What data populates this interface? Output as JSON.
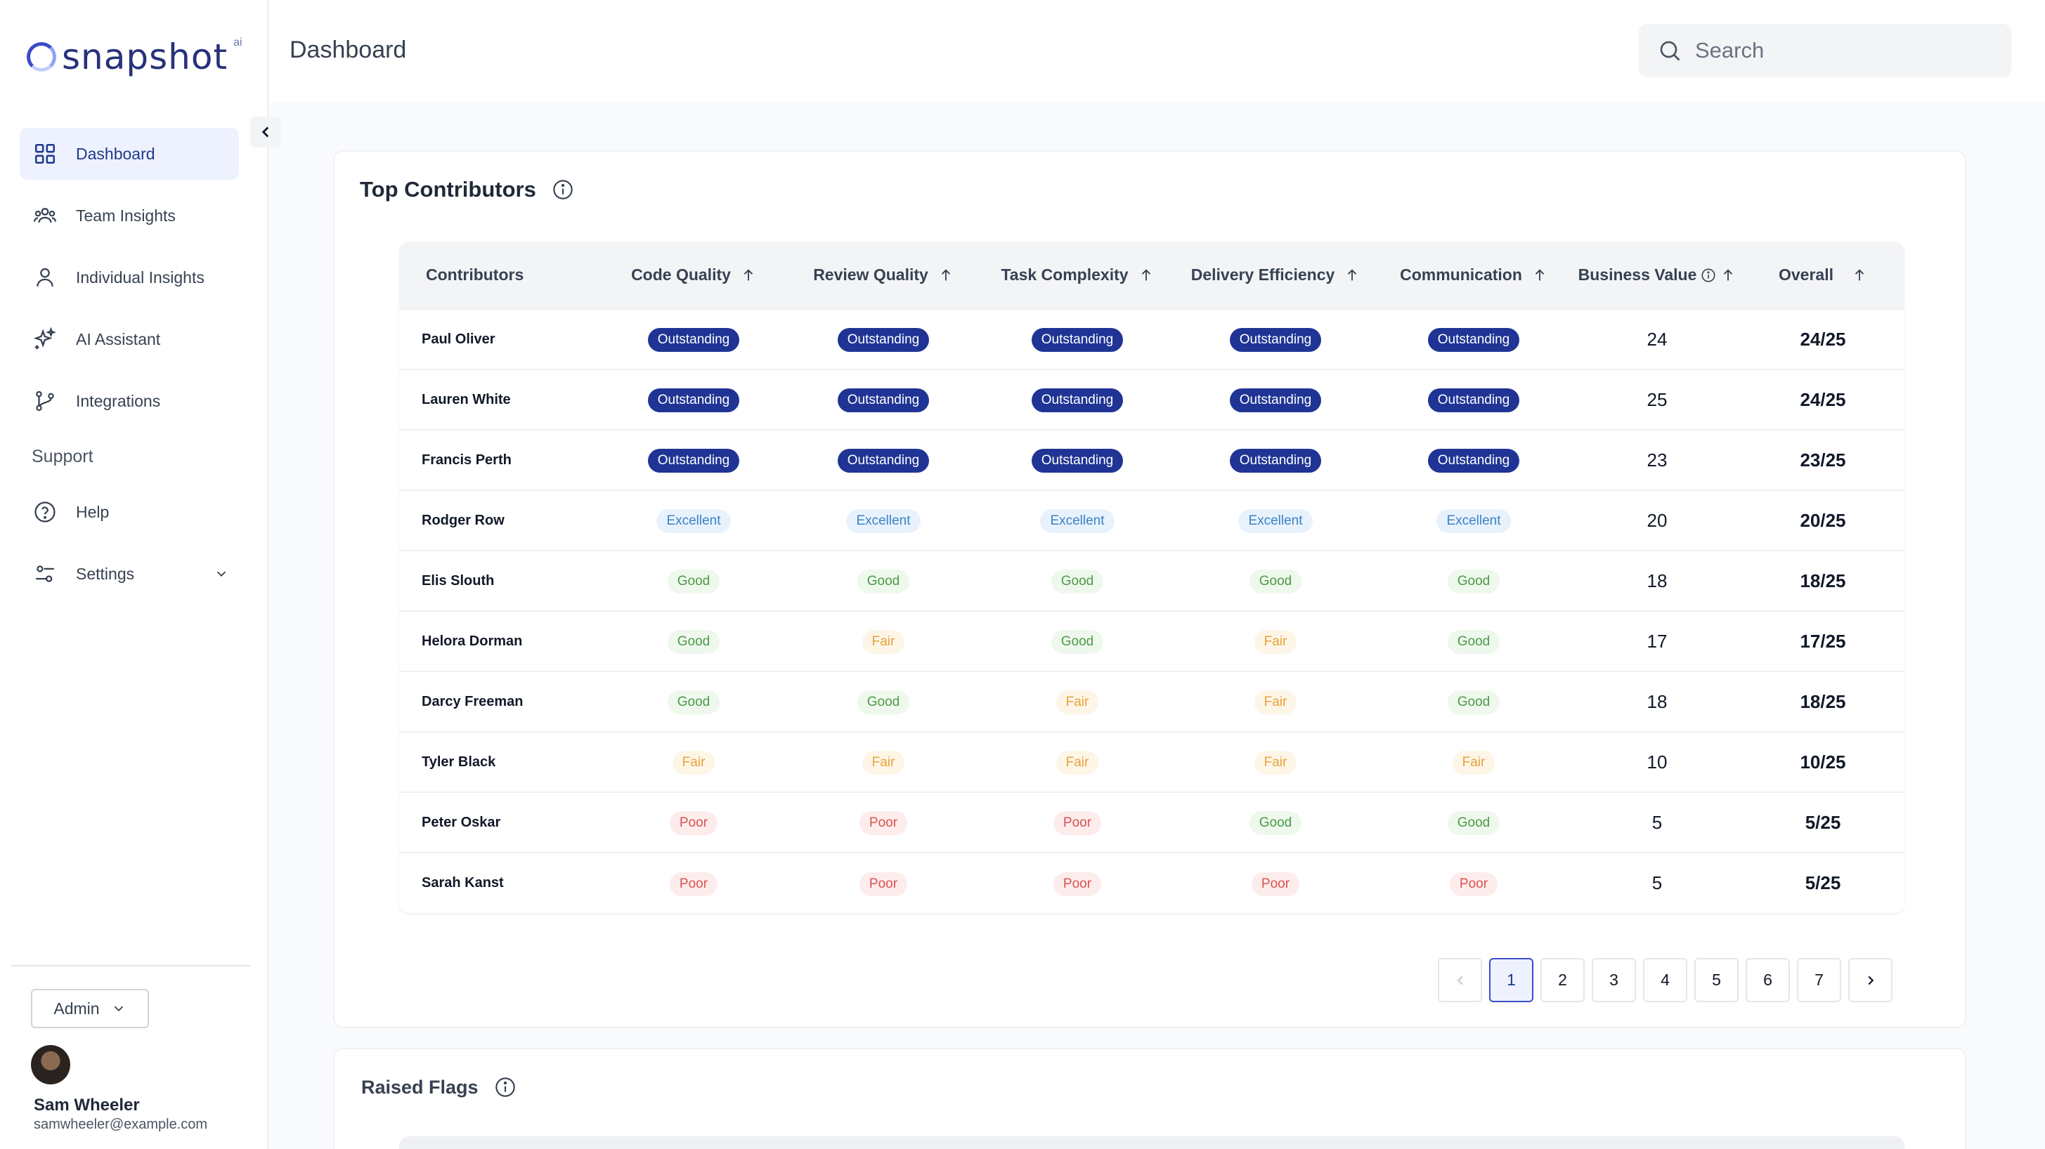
{
  "logo": {
    "name": "snapshot",
    "suffix": "ai"
  },
  "sidebar": {
    "items": [
      {
        "label": "Dashboard",
        "icon": "dashboard-icon",
        "active": true
      },
      {
        "label": "Team Insights",
        "icon": "team-icon"
      },
      {
        "label": "Individual Insights",
        "icon": "person-icon"
      },
      {
        "label": "AI Assistant",
        "icon": "sparkle-icon"
      },
      {
        "label": "Integrations",
        "icon": "integrations-icon"
      }
    ],
    "support_heading": "Support",
    "support_items": [
      {
        "label": "Help",
        "icon": "help-icon"
      },
      {
        "label": "Settings",
        "icon": "settings-icon"
      }
    ],
    "role": "Admin",
    "user": {
      "name": "Sam Wheeler",
      "email": "samwheeler@example.com"
    }
  },
  "header": {
    "title": "Dashboard",
    "search_placeholder": "Search"
  },
  "top_contributors": {
    "title": "Top Contributors",
    "columns": [
      "Contributors",
      "Code Quality",
      "Review Quality",
      "Task Complexity",
      "Delivery Efficiency",
      "Communication",
      "Business Value",
      "Overall"
    ],
    "rows": [
      {
        "name": "Paul Oliver",
        "ratings": [
          "Outstanding",
          "Outstanding",
          "Outstanding",
          "Outstanding",
          "Outstanding"
        ],
        "business_value": "24",
        "overall": "24/25"
      },
      {
        "name": "Lauren White",
        "ratings": [
          "Outstanding",
          "Outstanding",
          "Outstanding",
          "Outstanding",
          "Outstanding"
        ],
        "business_value": "25",
        "overall": "24/25"
      },
      {
        "name": "Francis Perth",
        "ratings": [
          "Outstanding",
          "Outstanding",
          "Outstanding",
          "Outstanding",
          "Outstanding"
        ],
        "business_value": "23",
        "overall": "23/25"
      },
      {
        "name": "Rodger Row",
        "ratings": [
          "Excellent",
          "Excellent",
          "Excellent",
          "Excellent",
          "Excellent"
        ],
        "business_value": "20",
        "overall": "20/25"
      },
      {
        "name": "Elis Slouth",
        "ratings": [
          "Good",
          "Good",
          "Good",
          "Good",
          "Good"
        ],
        "business_value": "18",
        "overall": "18/25"
      },
      {
        "name": "Helora Dorman",
        "ratings": [
          "Good",
          "Fair",
          "Good",
          "Fair",
          "Good"
        ],
        "business_value": "17",
        "overall": "17/25"
      },
      {
        "name": "Darcy Freeman",
        "ratings": [
          "Good",
          "Good",
          "Fair",
          "Fair",
          "Good"
        ],
        "business_value": "18",
        "overall": "18/25"
      },
      {
        "name": "Tyler Black",
        "ratings": [
          "Fair",
          "Fair",
          "Fair",
          "Fair",
          "Fair"
        ],
        "business_value": "10",
        "overall": "10/25"
      },
      {
        "name": "Peter Oskar",
        "ratings": [
          "Poor",
          "Poor",
          "Poor",
          "Good",
          "Good"
        ],
        "business_value": "5",
        "overall": "5/25"
      },
      {
        "name": "Sarah Kanst",
        "ratings": [
          "Poor",
          "Poor",
          "Poor",
          "Poor",
          "Poor"
        ],
        "business_value": "5",
        "overall": "5/25"
      }
    ],
    "pagination": {
      "pages": [
        "1",
        "2",
        "3",
        "4",
        "5",
        "6",
        "7"
      ],
      "current": "1"
    }
  },
  "raised_flags": {
    "title": "Raised Flags"
  }
}
